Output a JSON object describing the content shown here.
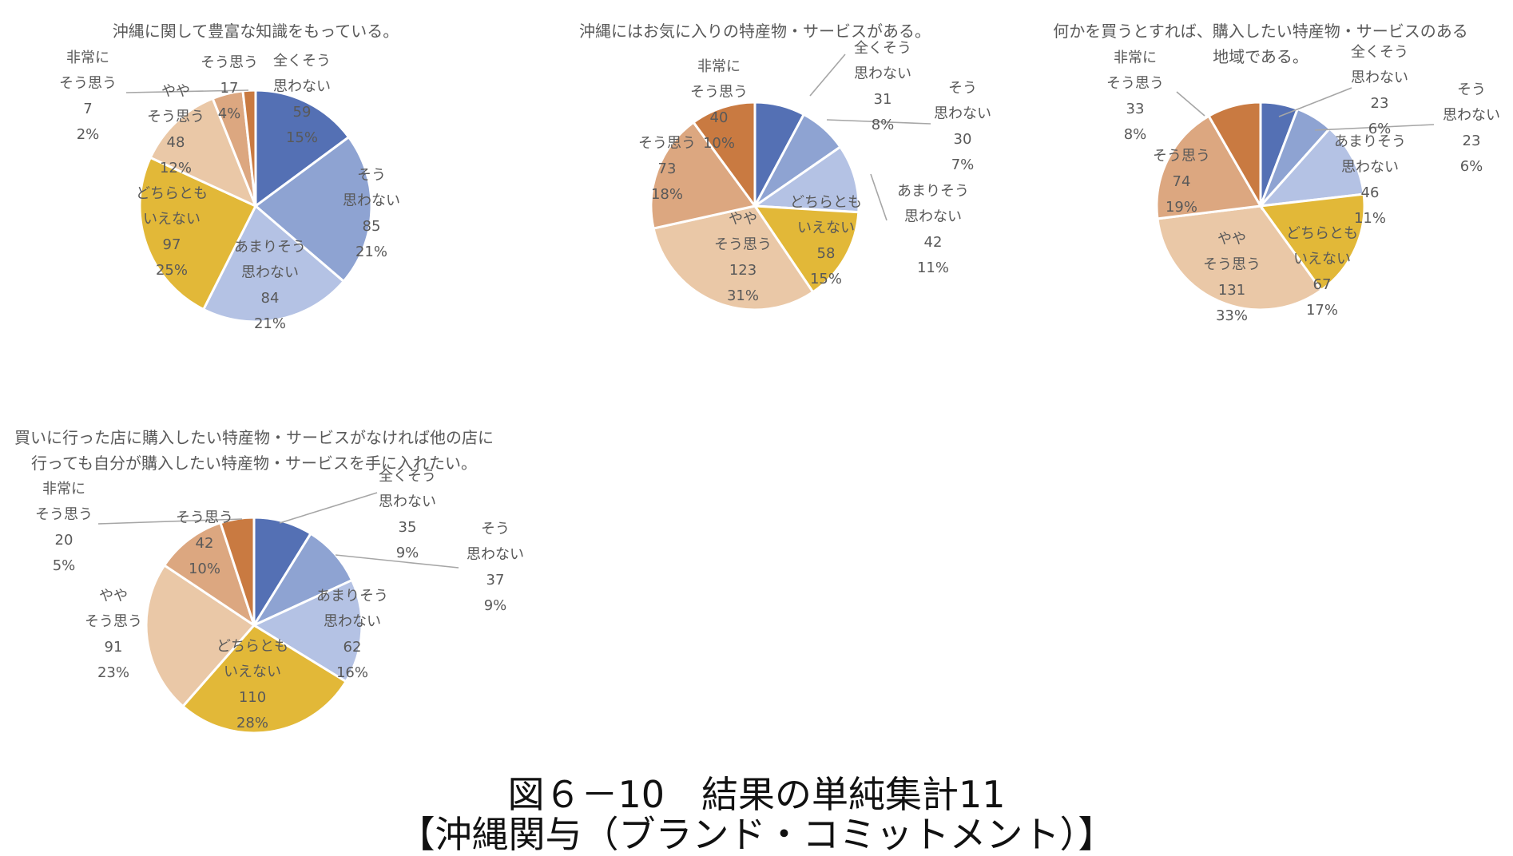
{
  "colors": {
    "全くそう思わない": "#5470b4",
    "そう思わない": "#8ea3d2",
    "あまりそう思わない": "#b4c2e4",
    "どちらともいえない": "#e2b838",
    "ややそう思う": "#eac8a7",
    "そう思う": "#dca780",
    "非常にそう思う": "#c97a41"
  },
  "caption": {
    "line1": "図６－10　結果の単純集計11",
    "line2": "【沖縄関与（ブランド・コミットメント）】"
  },
  "chart_data": [
    {
      "type": "pie",
      "title": [
        "沖縄に関して豊富な知識をもっている。"
      ],
      "slices": [
        {
          "label": [
            "全くそう",
            "思わない"
          ],
          "value": 59,
          "pct": "15%"
        },
        {
          "label": [
            "そう",
            "思わない"
          ],
          "value": 85,
          "pct": "21%"
        },
        {
          "label": [
            "あまりそう",
            "思わない"
          ],
          "value": 84,
          "pct": "21%"
        },
        {
          "label": [
            "どちらとも",
            "いえない"
          ],
          "value": 97,
          "pct": "25%"
        },
        {
          "label": [
            "やや",
            "そう思う"
          ],
          "value": 48,
          "pct": "12%"
        },
        {
          "label": [
            "そう思う"
          ],
          "value": 17,
          "pct": "4%"
        },
        {
          "label": [
            "非常に",
            "そう思う"
          ],
          "value": 7,
          "pct": "2%"
        }
      ]
    },
    {
      "type": "pie",
      "title": [
        "沖縄にはお気に入りの特産物・サービスがある。"
      ],
      "slices": [
        {
          "label": [
            "全くそう",
            "思わない"
          ],
          "value": 31,
          "pct": "8%"
        },
        {
          "label": [
            "そう",
            "思わない"
          ],
          "value": 30,
          "pct": "7%"
        },
        {
          "label": [
            "あまりそう",
            "思わない"
          ],
          "value": 42,
          "pct": "11%"
        },
        {
          "label": [
            "どちらとも",
            "いえない"
          ],
          "value": 58,
          "pct": "15%"
        },
        {
          "label": [
            "やや",
            "そう思う"
          ],
          "value": 123,
          "pct": "31%"
        },
        {
          "label": [
            "そう思う"
          ],
          "value": 73,
          "pct": "18%"
        },
        {
          "label": [
            "非常に",
            "そう思う"
          ],
          "value": 40,
          "pct": "10%"
        }
      ]
    },
    {
      "type": "pie",
      "title": [
        "何かを買うとすれば、購入したい特産物・サービスのある",
        "地域である。"
      ],
      "slices": [
        {
          "label": [
            "全くそう",
            "思わない"
          ],
          "value": 23,
          "pct": "6%"
        },
        {
          "label": [
            "そう",
            "思わない"
          ],
          "value": 23,
          "pct": "6%"
        },
        {
          "label": [
            "あまりそう",
            "思わない"
          ],
          "value": 46,
          "pct": "11%"
        },
        {
          "label": [
            "どちらとも",
            "いえない"
          ],
          "value": 67,
          "pct": "17%"
        },
        {
          "label": [
            "やや",
            "そう思う"
          ],
          "value": 131,
          "pct": "33%"
        },
        {
          "label": [
            "そう思う"
          ],
          "value": 74,
          "pct": "19%"
        },
        {
          "label": [
            "非常に",
            "そう思う"
          ],
          "value": 33,
          "pct": "8%"
        }
      ]
    },
    {
      "type": "pie",
      "title": [
        "買いに行った店に購入したい特産物・サービスがなければ他の店に",
        "行っても自分が購入したい特産物・サービスを手に入れたい。"
      ],
      "slices": [
        {
          "label": [
            "全くそう",
            "思わない"
          ],
          "value": 35,
          "pct": "9%"
        },
        {
          "label": [
            "そう",
            "思わない"
          ],
          "value": 37,
          "pct": "9%"
        },
        {
          "label": [
            "あまりそう",
            "思わない"
          ],
          "value": 62,
          "pct": "16%"
        },
        {
          "label": [
            "どちらとも",
            "いえない"
          ],
          "value": 110,
          "pct": "28%"
        },
        {
          "label": [
            "やや",
            "そう思う"
          ],
          "value": 91,
          "pct": "23%"
        },
        {
          "label": [
            "そう思う"
          ],
          "value": 42,
          "pct": "10%"
        },
        {
          "label": [
            "非常に",
            "そう思う"
          ],
          "value": 20,
          "pct": "5%"
        }
      ]
    }
  ]
}
